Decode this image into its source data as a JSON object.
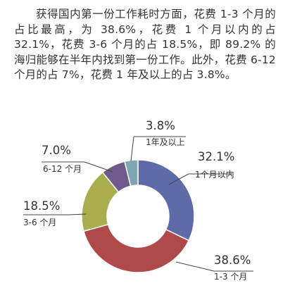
{
  "article": {
    "paragraph": "获得国内第一份工作耗时方面，花费 1-3 个月的占比最高，为 38.6%，花费 1 个月以内的占 32.1%，花费 3-6 个月的占 18.5%，即 89.2% 的海归能够在半年内找到第一份工作。此外，花费 6-12 个月的占 7%，花费 1 年及以上的占 3.8%。"
  },
  "chart_data": {
    "type": "pie",
    "variant": "donut",
    "title": "",
    "start": "top, clockwise",
    "slices": [
      {
        "category": "1个月以内",
        "value": 32.1,
        "value_label": "32.1%",
        "color": "#5F6AA8"
      },
      {
        "category": "1-3 个月",
        "value": 38.6,
        "value_label": "38.6%",
        "color": "#B04A4A"
      },
      {
        "category": "3-6 个月",
        "value": 18.5,
        "value_label": "18.5%",
        "color": "#A8AE4E"
      },
      {
        "category": "6-12 个月",
        "value": 7.0,
        "value_label": "7.0%",
        "color": "#6E5B8C"
      },
      {
        "category": "1年及以上",
        "value": 3.8,
        "value_label": "3.8%",
        "color": "#7FA6B3"
      }
    ]
  }
}
